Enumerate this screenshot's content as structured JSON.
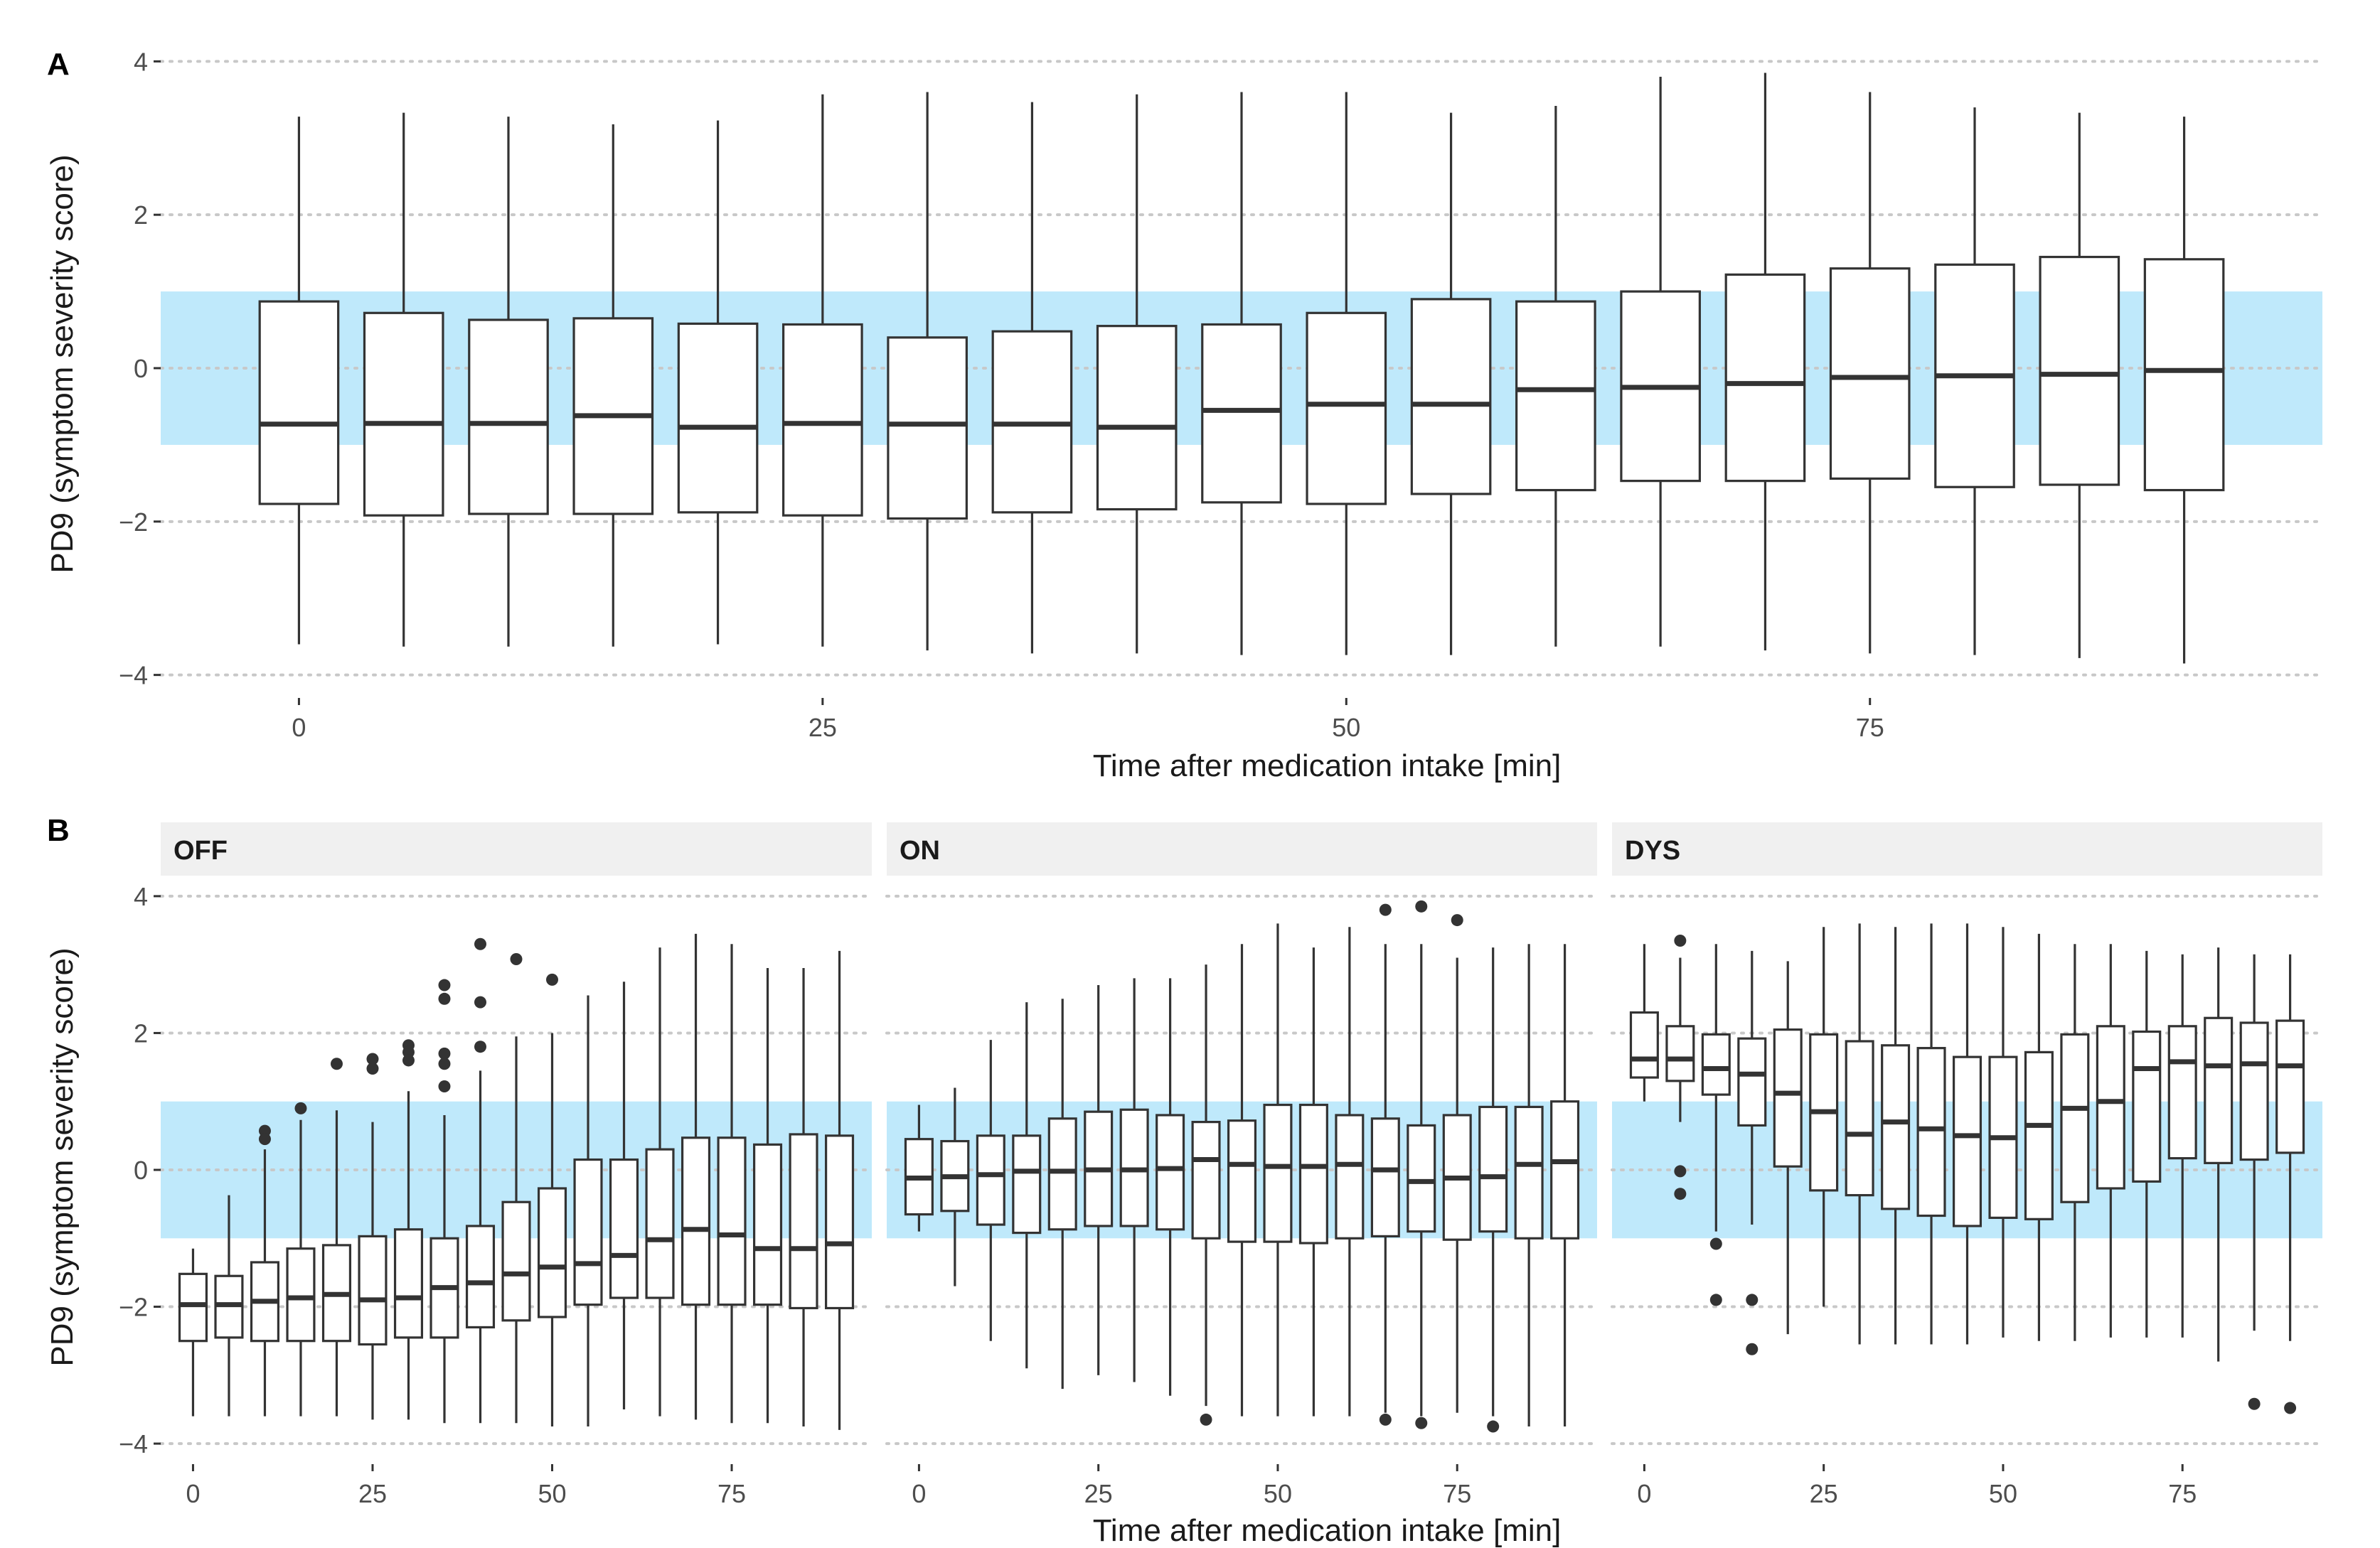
{
  "colors": {
    "band": "#bfe9fb",
    "strip_bg": "#f0f0f0",
    "box_stroke": "#333333",
    "gridline": "#c8c8c8",
    "outlier": "#333333"
  },
  "chart_data": [
    {
      "panel": "A",
      "type": "boxplot",
      "xlabel": "Time after medication intake [min]",
      "ylabel": "PD9 (symptom severity score)",
      "ylim": [
        -4.3,
        4.3
      ],
      "xlim": [
        -6.6,
        96.6
      ],
      "yticks": [
        -4,
        -2,
        0,
        2,
        4
      ],
      "ytick_labels": [
        "−4",
        "−2",
        "0",
        "2",
        "4"
      ],
      "xticks": [
        0,
        25,
        50,
        75
      ],
      "xtick_labels": [
        "0",
        "25",
        "50",
        "75"
      ],
      "band": [
        -1,
        1
      ],
      "box_width": 3.75,
      "boxes": [
        {
          "x": 0,
          "lo": -3.6,
          "q1": -1.77,
          "med": -0.73,
          "q3": 0.87,
          "hi": 3.28
        },
        {
          "x": 5,
          "lo": -3.63,
          "q1": -1.92,
          "med": -0.72,
          "q3": 0.72,
          "hi": 3.33
        },
        {
          "x": 10,
          "lo": -3.63,
          "q1": -1.9,
          "med": -0.72,
          "q3": 0.63,
          "hi": 3.28
        },
        {
          "x": 15,
          "lo": -3.63,
          "q1": -1.9,
          "med": -0.62,
          "q3": 0.65,
          "hi": 3.18
        },
        {
          "x": 20,
          "lo": -3.6,
          "q1": -1.88,
          "med": -0.77,
          "q3": 0.58,
          "hi": 3.23
        },
        {
          "x": 25,
          "lo": -3.63,
          "q1": -1.92,
          "med": -0.72,
          "q3": 0.57,
          "hi": 3.57
        },
        {
          "x": 30,
          "lo": -3.68,
          "q1": -1.96,
          "med": -0.73,
          "q3": 0.4,
          "hi": 3.6
        },
        {
          "x": 35,
          "lo": -3.72,
          "q1": -1.88,
          "med": -0.73,
          "q3": 0.48,
          "hi": 3.47
        },
        {
          "x": 40,
          "lo": -3.72,
          "q1": -1.84,
          "med": -0.77,
          "q3": 0.55,
          "hi": 3.57
        },
        {
          "x": 45,
          "lo": -3.74,
          "q1": -1.75,
          "med": -0.55,
          "q3": 0.57,
          "hi": 3.6
        },
        {
          "x": 50,
          "lo": -3.74,
          "q1": -1.77,
          "med": -0.47,
          "q3": 0.72,
          "hi": 3.6
        },
        {
          "x": 55,
          "lo": -3.74,
          "q1": -1.64,
          "med": -0.47,
          "q3": 0.9,
          "hi": 3.33
        },
        {
          "x": 60,
          "lo": -3.63,
          "q1": -1.59,
          "med": -0.28,
          "q3": 0.87,
          "hi": 3.42
        },
        {
          "x": 65,
          "lo": -3.63,
          "q1": -1.47,
          "med": -0.25,
          "q3": 1.0,
          "hi": 3.8
        },
        {
          "x": 70,
          "lo": -3.68,
          "q1": -1.47,
          "med": -0.2,
          "q3": 1.22,
          "hi": 3.85
        },
        {
          "x": 75,
          "lo": -3.72,
          "q1": -1.44,
          "med": -0.12,
          "q3": 1.3,
          "hi": 3.6
        },
        {
          "x": 80,
          "lo": -3.74,
          "q1": -1.55,
          "med": -0.1,
          "q3": 1.35,
          "hi": 3.4
        },
        {
          "x": 85,
          "lo": -3.78,
          "q1": -1.52,
          "med": -0.08,
          "q3": 1.45,
          "hi": 3.33
        },
        {
          "x": 90,
          "lo": -3.85,
          "q1": -1.59,
          "med": -0.03,
          "q3": 1.42,
          "hi": 3.28
        }
      ]
    },
    {
      "panel": "B",
      "type": "boxplot-faceted",
      "xlabel": "Time after medication intake [min]",
      "ylabel": "PD9 (symptom severity score)",
      "ylim": [
        -4.3,
        4.3
      ],
      "xlim": [
        -4.5,
        94.5
      ],
      "yticks": [
        -4,
        -2,
        0,
        2,
        4
      ],
      "ytick_labels": [
        "−4",
        "−2",
        "0",
        "2",
        "4"
      ],
      "xticks": [
        0,
        25,
        50,
        75
      ],
      "xtick_labels": [
        "0",
        "25",
        "50",
        "75"
      ],
      "band": [
        -1,
        1
      ],
      "box_width": 3.75,
      "facets": [
        {
          "label": "OFF",
          "boxes": [
            {
              "x": 0,
              "lo": -3.6,
              "q1": -2.5,
              "med": -1.97,
              "q3": -1.52,
              "hi": -1.15
            },
            {
              "x": 5,
              "lo": -3.6,
              "q1": -2.45,
              "med": -1.97,
              "q3": -1.55,
              "hi": -0.37
            },
            {
              "x": 10,
              "lo": -3.6,
              "q1": -2.5,
              "med": -1.92,
              "q3": -1.35,
              "hi": 0.3
            },
            {
              "x": 15,
              "lo": -3.6,
              "q1": -2.5,
              "med": -1.87,
              "q3": -1.15,
              "hi": 0.73
            },
            {
              "x": 20,
              "lo": -3.6,
              "q1": -2.5,
              "med": -1.82,
              "q3": -1.1,
              "hi": 0.87
            },
            {
              "x": 25,
              "lo": -3.65,
              "q1": -2.55,
              "med": -1.9,
              "q3": -0.97,
              "hi": 0.7
            },
            {
              "x": 30,
              "lo": -3.65,
              "q1": -2.45,
              "med": -1.87,
              "q3": -0.87,
              "hi": 1.15
            },
            {
              "x": 35,
              "lo": -3.7,
              "q1": -2.45,
              "med": -1.72,
              "q3": -1.0,
              "hi": 0.8
            },
            {
              "x": 40,
              "lo": -3.7,
              "q1": -2.3,
              "med": -1.65,
              "q3": -0.82,
              "hi": 1.45
            },
            {
              "x": 45,
              "lo": -3.7,
              "q1": -2.2,
              "med": -1.52,
              "q3": -0.47,
              "hi": 1.95
            },
            {
              "x": 50,
              "lo": -3.75,
              "q1": -2.15,
              "med": -1.42,
              "q3": -0.27,
              "hi": 2.0
            },
            {
              "x": 55,
              "lo": -3.75,
              "q1": -1.97,
              "med": -1.37,
              "q3": 0.15,
              "hi": 2.55
            },
            {
              "x": 60,
              "lo": -3.5,
              "q1": -1.87,
              "med": -1.25,
              "q3": 0.15,
              "hi": 2.75
            },
            {
              "x": 65,
              "lo": -3.6,
              "q1": -1.87,
              "med": -1.02,
              "q3": 0.3,
              "hi": 3.25
            },
            {
              "x": 70,
              "lo": -3.65,
              "q1": -1.97,
              "med": -0.87,
              "q3": 0.47,
              "hi": 3.45
            },
            {
              "x": 75,
              "lo": -3.7,
              "q1": -1.97,
              "med": -0.95,
              "q3": 0.47,
              "hi": 3.3
            },
            {
              "x": 80,
              "lo": -3.7,
              "q1": -1.97,
              "med": -1.15,
              "q3": 0.37,
              "hi": 2.95
            },
            {
              "x": 85,
              "lo": -3.75,
              "q1": -2.02,
              "med": -1.15,
              "q3": 0.52,
              "hi": 2.95
            },
            {
              "x": 90,
              "lo": -3.8,
              "q1": -2.02,
              "med": -1.08,
              "q3": 0.5,
              "hi": 3.2
            }
          ],
          "outliers": [
            {
              "x": 10,
              "y": 0.57
            },
            {
              "x": 10,
              "y": 0.45
            },
            {
              "x": 15,
              "y": 0.9
            },
            {
              "x": 20,
              "y": 1.55
            },
            {
              "x": 25,
              "y": 1.62
            },
            {
              "x": 25,
              "y": 1.48
            },
            {
              "x": 30,
              "y": 1.82
            },
            {
              "x": 30,
              "y": 1.72
            },
            {
              "x": 30,
              "y": 1.6
            },
            {
              "x": 35,
              "y": 2.7
            },
            {
              "x": 35,
              "y": 2.5
            },
            {
              "x": 35,
              "y": 1.7
            },
            {
              "x": 35,
              "y": 1.55
            },
            {
              "x": 35,
              "y": 1.22
            },
            {
              "x": 40,
              "y": 3.3
            },
            {
              "x": 40,
              "y": 2.45
            },
            {
              "x": 40,
              "y": 1.8
            },
            {
              "x": 45,
              "y": 3.08
            },
            {
              "x": 50,
              "y": 2.78
            }
          ]
        },
        {
          "label": "ON",
          "boxes": [
            {
              "x": 0,
              "lo": -0.9,
              "q1": -0.65,
              "med": -0.12,
              "q3": 0.45,
              "hi": 0.95
            },
            {
              "x": 5,
              "lo": -1.7,
              "q1": -0.6,
              "med": -0.1,
              "q3": 0.42,
              "hi": 1.2
            },
            {
              "x": 10,
              "lo": -2.5,
              "q1": -0.8,
              "med": -0.07,
              "q3": 0.5,
              "hi": 1.9
            },
            {
              "x": 15,
              "lo": -2.9,
              "q1": -0.92,
              "med": -0.02,
              "q3": 0.5,
              "hi": 2.45
            },
            {
              "x": 20,
              "lo": -3.2,
              "q1": -0.87,
              "med": -0.02,
              "q3": 0.75,
              "hi": 2.5
            },
            {
              "x": 25,
              "lo": -3.0,
              "q1": -0.82,
              "med": 0.0,
              "q3": 0.85,
              "hi": 2.7
            },
            {
              "x": 30,
              "lo": -3.1,
              "q1": -0.82,
              "med": 0.0,
              "q3": 0.88,
              "hi": 2.8
            },
            {
              "x": 35,
              "lo": -3.3,
              "q1": -0.87,
              "med": 0.02,
              "q3": 0.8,
              "hi": 2.8
            },
            {
              "x": 40,
              "lo": -3.45,
              "q1": -1.0,
              "med": 0.15,
              "q3": 0.7,
              "hi": 3.0
            },
            {
              "x": 45,
              "lo": -3.6,
              "q1": -1.05,
              "med": 0.08,
              "q3": 0.72,
              "hi": 3.3
            },
            {
              "x": 50,
              "lo": -3.6,
              "q1": -1.05,
              "med": 0.05,
              "q3": 0.95,
              "hi": 3.6
            },
            {
              "x": 55,
              "lo": -3.6,
              "q1": -1.07,
              "med": 0.05,
              "q3": 0.95,
              "hi": 3.25
            },
            {
              "x": 60,
              "lo": -3.6,
              "q1": -1.0,
              "med": 0.08,
              "q3": 0.8,
              "hi": 3.55
            },
            {
              "x": 65,
              "lo": -3.55,
              "q1": -0.97,
              "med": 0.0,
              "q3": 0.75,
              "hi": 3.3
            },
            {
              "x": 70,
              "lo": -3.6,
              "q1": -0.9,
              "med": -0.17,
              "q3": 0.65,
              "hi": 3.3
            },
            {
              "x": 75,
              "lo": -3.55,
              "q1": -1.02,
              "med": -0.12,
              "q3": 0.8,
              "hi": 3.1
            },
            {
              "x": 80,
              "lo": -3.6,
              "q1": -0.9,
              "med": -0.1,
              "q3": 0.92,
              "hi": 3.25
            },
            {
              "x": 85,
              "lo": -3.75,
              "q1": -1.0,
              "med": 0.08,
              "q3": 0.92,
              "hi": 3.3
            },
            {
              "x": 90,
              "lo": -3.75,
              "q1": -1.0,
              "med": 0.12,
              "q3": 1.0,
              "hi": 3.3
            }
          ],
          "outliers": [
            {
              "x": 40,
              "y": -3.65
            },
            {
              "x": 65,
              "y": 3.8
            },
            {
              "x": 65,
              "y": -3.65
            },
            {
              "x": 70,
              "y": 3.85
            },
            {
              "x": 70,
              "y": -3.7
            },
            {
              "x": 75,
              "y": 3.65
            },
            {
              "x": 80,
              "y": -3.75
            }
          ]
        },
        {
          "label": "DYS",
          "boxes": [
            {
              "x": 0,
              "lo": 1.0,
              "q1": 1.35,
              "med": 1.62,
              "q3": 2.3,
              "hi": 3.3
            },
            {
              "x": 5,
              "lo": 0.7,
              "q1": 1.3,
              "med": 1.62,
              "q3": 2.1,
              "hi": 3.1
            },
            {
              "x": 10,
              "lo": -0.9,
              "q1": 1.1,
              "med": 1.48,
              "q3": 1.98,
              "hi": 3.3
            },
            {
              "x": 15,
              "lo": -0.8,
              "q1": 0.65,
              "med": 1.4,
              "q3": 1.92,
              "hi": 3.2
            },
            {
              "x": 20,
              "lo": -2.4,
              "q1": 0.05,
              "med": 1.12,
              "q3": 2.05,
              "hi": 3.05
            },
            {
              "x": 25,
              "lo": -2.0,
              "q1": -0.3,
              "med": 0.85,
              "q3": 1.98,
              "hi": 3.55
            },
            {
              "x": 30,
              "lo": -2.55,
              "q1": -0.37,
              "med": 0.52,
              "q3": 1.88,
              "hi": 3.6
            },
            {
              "x": 35,
              "lo": -2.55,
              "q1": -0.57,
              "med": 0.7,
              "q3": 1.82,
              "hi": 3.55
            },
            {
              "x": 40,
              "lo": -2.55,
              "q1": -0.67,
              "med": 0.6,
              "q3": 1.78,
              "hi": 3.6
            },
            {
              "x": 45,
              "lo": -2.55,
              "q1": -0.82,
              "med": 0.5,
              "q3": 1.65,
              "hi": 3.6
            },
            {
              "x": 50,
              "lo": -2.45,
              "q1": -0.7,
              "med": 0.47,
              "q3": 1.65,
              "hi": 3.55
            },
            {
              "x": 55,
              "lo": -2.5,
              "q1": -0.72,
              "med": 0.65,
              "q3": 1.72,
              "hi": 3.45
            },
            {
              "x": 60,
              "lo": -2.5,
              "q1": -0.47,
              "med": 0.9,
              "q3": 1.98,
              "hi": 3.3
            },
            {
              "x": 65,
              "lo": -2.45,
              "q1": -0.27,
              "med": 1.0,
              "q3": 2.1,
              "hi": 3.3
            },
            {
              "x": 70,
              "lo": -2.45,
              "q1": -0.17,
              "med": 1.48,
              "q3": 2.02,
              "hi": 3.2
            },
            {
              "x": 75,
              "lo": -2.45,
              "q1": 0.17,
              "med": 1.58,
              "q3": 2.1,
              "hi": 3.15
            },
            {
              "x": 80,
              "lo": -2.8,
              "q1": 0.1,
              "med": 1.52,
              "q3": 2.22,
              "hi": 3.25
            },
            {
              "x": 85,
              "lo": -2.35,
              "q1": 0.15,
              "med": 1.55,
              "q3": 2.15,
              "hi": 3.15
            },
            {
              "x": 90,
              "lo": -2.5,
              "q1": 0.25,
              "med": 1.52,
              "q3": 2.18,
              "hi": 3.15
            }
          ],
          "outliers": [
            {
              "x": 5,
              "y": 3.35
            },
            {
              "x": 5,
              "y": -0.02
            },
            {
              "x": 5,
              "y": -0.35
            },
            {
              "x": 10,
              "y": -1.08
            },
            {
              "x": 10,
              "y": -1.9
            },
            {
              "x": 15,
              "y": -1.9
            },
            {
              "x": 15,
              "y": -2.62
            },
            {
              "x": 85,
              "y": -3.42
            },
            {
              "x": 90,
              "y": -3.48
            }
          ]
        }
      ]
    }
  ]
}
